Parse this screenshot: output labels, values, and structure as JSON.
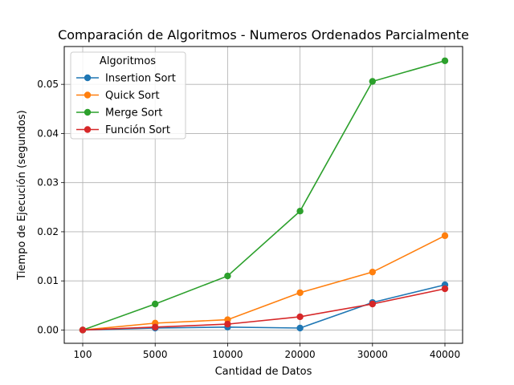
{
  "chart_data": {
    "type": "line",
    "title": "Comparación de Algoritmos - Numeros Ordenados Parcialmente",
    "xlabel": "Cantidad de Datos",
    "ylabel": "Tiempo de Ejecución (segundos)",
    "categories": [
      "100",
      "5000",
      "10000",
      "20000",
      "30000",
      "40000"
    ],
    "ylim": [
      -0.0027,
      0.0577
    ],
    "yticks": [
      0.0,
      0.01,
      0.02,
      0.03,
      0.04,
      0.05
    ],
    "ytick_labels": [
      "0.00",
      "0.01",
      "0.02",
      "0.03",
      "0.04",
      "0.05"
    ],
    "grid": true,
    "legend": {
      "title": "Algoritmos",
      "placement": "top-left"
    },
    "series": [
      {
        "name": "Insertion Sort",
        "color": "#1f77b4",
        "values": [
          0.0,
          0.0004,
          0.0006,
          0.0004,
          0.0056,
          0.0092
        ]
      },
      {
        "name": "Quick Sort",
        "color": "#ff7f0e",
        "values": [
          0.0,
          0.0014,
          0.0021,
          0.0076,
          0.0118,
          0.0192
        ]
      },
      {
        "name": "Merge Sort",
        "color": "#2ca02c",
        "values": [
          0.0,
          0.0053,
          0.011,
          0.0242,
          0.0506,
          0.0548
        ]
      },
      {
        "name": "Función Sort",
        "color": "#d62728",
        "values": [
          0.0,
          0.0006,
          0.0012,
          0.0027,
          0.0053,
          0.0084
        ]
      }
    ]
  }
}
